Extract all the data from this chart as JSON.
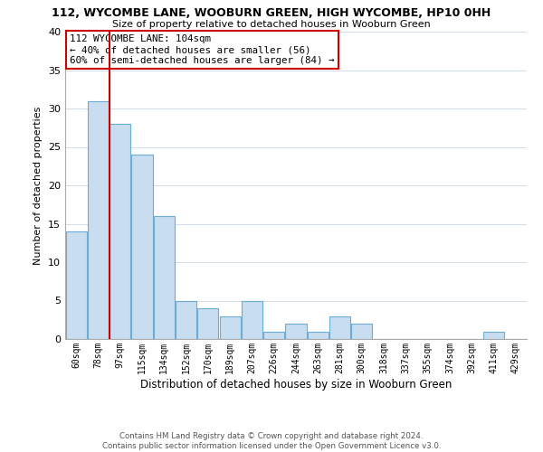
{
  "title": "112, WYCOMBE LANE, WOOBURN GREEN, HIGH WYCOMBE, HP10 0HH",
  "subtitle": "Size of property relative to detached houses in Wooburn Green",
  "xlabel": "Distribution of detached houses by size in Wooburn Green",
  "ylabel": "Number of detached properties",
  "bin_labels": [
    "60sqm",
    "78sqm",
    "97sqm",
    "115sqm",
    "134sqm",
    "152sqm",
    "170sqm",
    "189sqm",
    "207sqm",
    "226sqm",
    "244sqm",
    "263sqm",
    "281sqm",
    "300sqm",
    "318sqm",
    "337sqm",
    "355sqm",
    "374sqm",
    "392sqm",
    "411sqm",
    "429sqm"
  ],
  "bar_heights": [
    14,
    31,
    28,
    24,
    16,
    5,
    4,
    3,
    5,
    1,
    2,
    1,
    3,
    2,
    0,
    0,
    0,
    0,
    0,
    1,
    0
  ],
  "bar_color": "#c9ddf0",
  "bar_edge_color": "#6aaed6",
  "vline_x": 1.5,
  "highlight_color": "#cc0000",
  "annotation_text": "112 WYCOMBE LANE: 104sqm\n← 40% of detached houses are smaller (56)\n60% of semi-detached houses are larger (84) →",
  "annotation_box_edge": "#cc0000",
  "ylim": [
    0,
    40
  ],
  "yticks": [
    0,
    5,
    10,
    15,
    20,
    25,
    30,
    35,
    40
  ],
  "footer": "Contains HM Land Registry data © Crown copyright and database right 2024.\nContains public sector information licensed under the Open Government Licence v3.0.",
  "bg_color": "#ffffff",
  "grid_color": "#d4dde8"
}
